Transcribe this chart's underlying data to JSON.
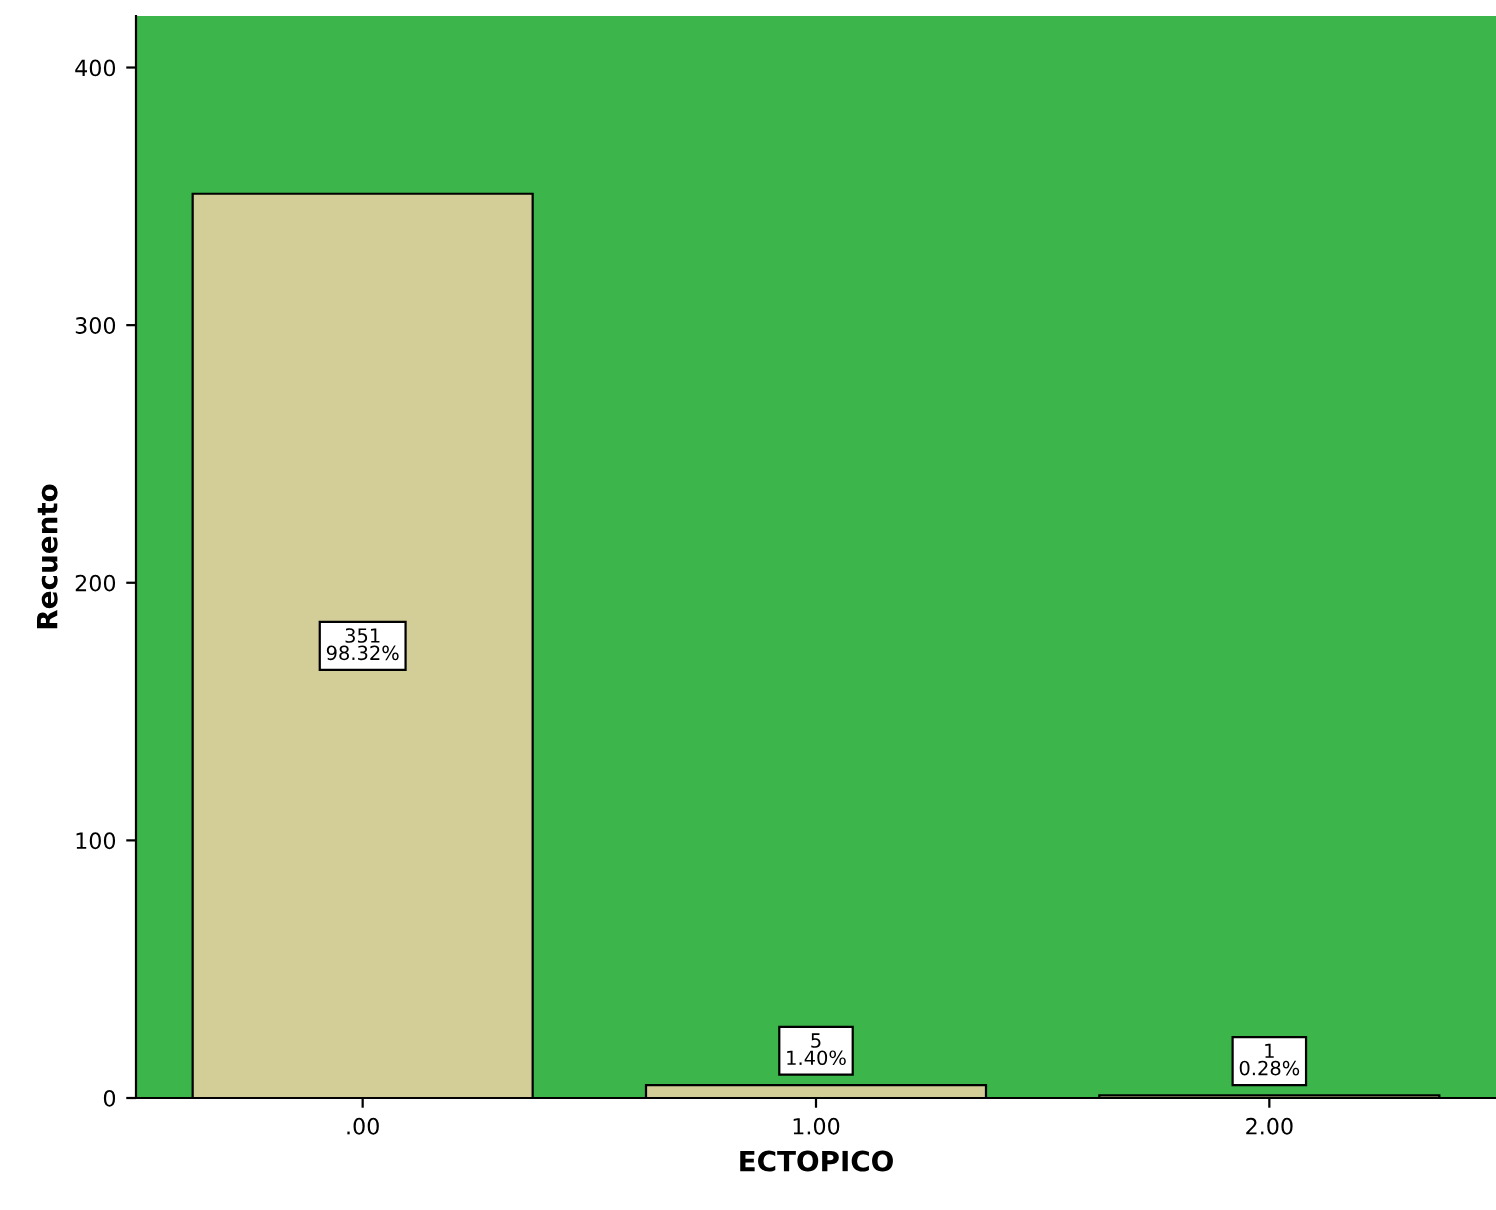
{
  "chart_data": {
    "type": "bar",
    "xlabel": "ECTOPICO",
    "ylabel": "Recuento",
    "categories": [
      ".00",
      "1.00",
      "2.00"
    ],
    "values": [
      351,
      5,
      1
    ],
    "value_labels": [
      "351\n98.32%",
      "5\n1.40%",
      "1\n0.28%"
    ],
    "color": "#d3cd97",
    "ylim": [
      0,
      420
    ],
    "yticks": [
      0,
      100,
      200,
      300,
      400
    ],
    "grid": false,
    "legend": false
  }
}
